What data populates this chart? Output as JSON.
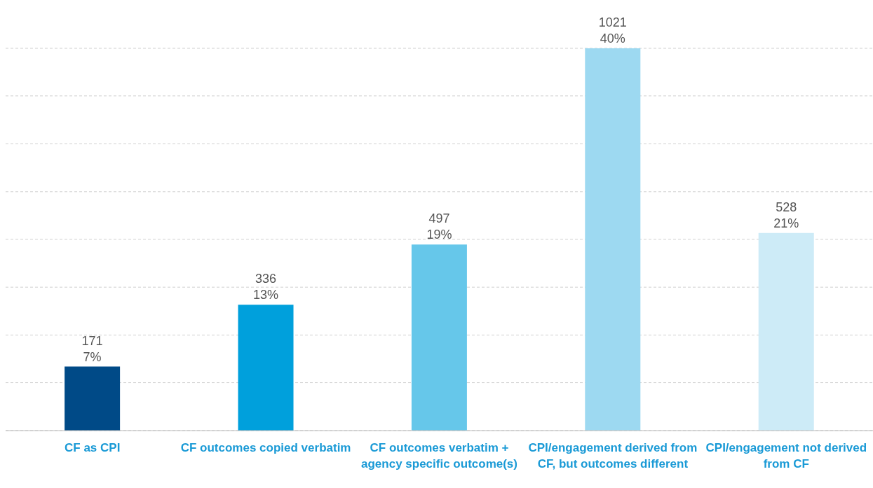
{
  "chart_data": {
    "type": "bar",
    "categories": [
      "CF as CPI",
      "CF outcomes copied verbatim",
      "CF outcomes verbatim + agency specific outcome(s)",
      "CPI/engagement derived from CF, but outcomes different",
      "CPI/engagement not derived from CF"
    ],
    "values": [
      171,
      336,
      497,
      1021,
      528
    ],
    "colors": [
      "#004a87",
      "#00a0dc",
      "#66c7ea",
      "#9dd9f1",
      "#cdebf7"
    ],
    "value_labels": [
      "171\n7%",
      "336\n13%",
      "497\n19%",
      "1021\n40%",
      "528\n21%"
    ],
    "ylim": [
      0,
      1021
    ],
    "yticks": [
      {
        "value": 0,
        "label": null
      },
      {
        "value": 128,
        "label": null
      },
      {
        "value": 255,
        "label": null
      },
      {
        "value": 383,
        "label": null
      },
      {
        "value": 511,
        "label": null
      },
      {
        "value": 638,
        "label": null
      },
      {
        "value": 766,
        "label": null
      },
      {
        "value": 894,
        "label": null
      },
      {
        "value": 1021,
        "label": null
      }
    ],
    "tick_labels": "x",
    "grid": "y",
    "legend": false
  }
}
